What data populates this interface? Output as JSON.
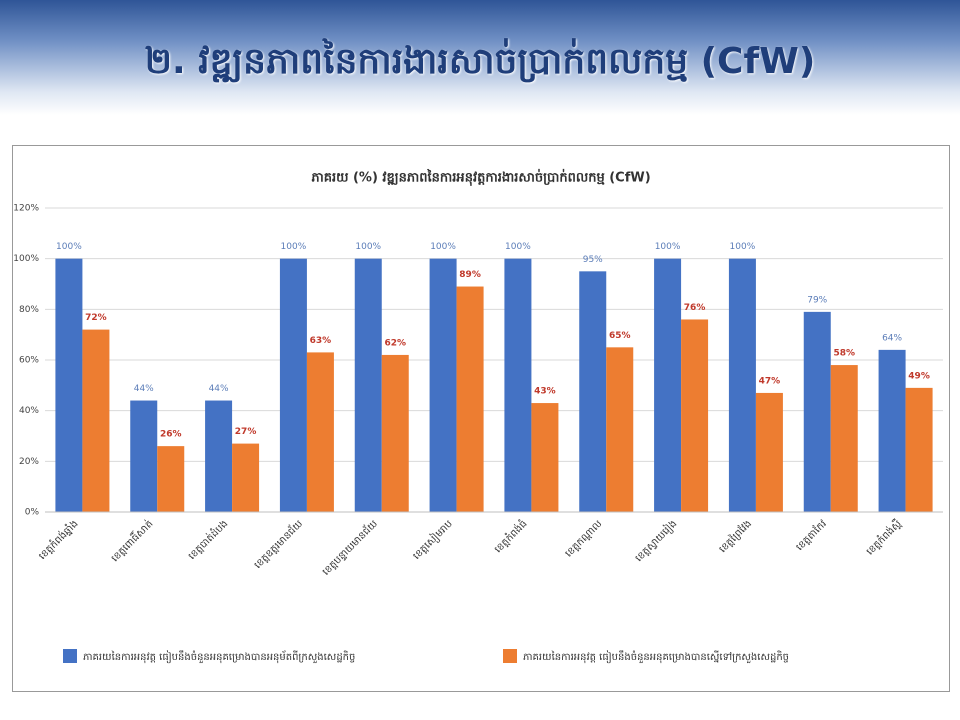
{
  "slide_title": "២. វឌ្ឍនភាពនៃការងារសាច់ប្រាក់ពលកម្ម (CfW)",
  "chart_data": {
    "type": "bar",
    "title": "ភាគរយ (%) វឌ្ឍនភាពនៃការអនុវត្តការងារសាច់ប្រាក់ពលកម្ម (CfW)",
    "categories": [
      "ខេត្តកំពង់ឆ្នាំង",
      "ខេត្តពោធិ៍សាត់",
      "ខេត្តបាត់ដំបង",
      "ខេត្តឧត្តរមានជ័យ",
      "ខេត្តបន្ទាយមានជ័យ",
      "ខេត្តសៀមរាប",
      "ខេត្តកំពង់ធំ",
      "ខេត្តកណ្ដាល",
      "ខេត្តស្វាយរៀង",
      "ខេត្តព្រៃវែង",
      "ខេត្តតាកែវ",
      "ខេត្តកំពង់ស្ពឺ"
    ],
    "series": [
      {
        "name": "ភាគរយនៃការអនុវត្ត ធៀបនឹងចំនួនអនុគម្រោងបានអនុម័តពីក្រសួងសេដ្ឋកិច្ច",
        "color": "#4472c4",
        "values": [
          100,
          44,
          44,
          100,
          100,
          100,
          100,
          95,
          100,
          100,
          79,
          64
        ],
        "value_labels": [
          "100%",
          "44%",
          "44%",
          "100%",
          "100%",
          "100%",
          "100%",
          "95%",
          "100%",
          "100%",
          "79%",
          "64%"
        ]
      },
      {
        "name": "ភាគរយនៃការអនុវត្ត ធៀបនឹងចំនួនអនុគម្រោងបានស្នើទៅក្រសួងសេដ្ឋកិច្ច",
        "color": "#ed7d31",
        "values": [
          72,
          26,
          27,
          63,
          62,
          89,
          43,
          65,
          76,
          47,
          58,
          49
        ],
        "value_labels": [
          "72%",
          "26%",
          "27%",
          "63%",
          "62%",
          "89%",
          "43%",
          "65%",
          "76%",
          "47%",
          "58%",
          "49%"
        ]
      }
    ],
    "ylim": [
      0,
      120
    ],
    "yticks": [
      {
        "value": 0,
        "label": "0%"
      },
      {
        "value": 20,
        "label": "20%"
      },
      {
        "value": 40,
        "label": "40%"
      },
      {
        "value": 60,
        "label": "60%"
      },
      {
        "value": 80,
        "label": "80%"
      },
      {
        "value": 100,
        "label": "100%"
      },
      {
        "value": 120,
        "label": "120%"
      }
    ],
    "grid": true
  }
}
